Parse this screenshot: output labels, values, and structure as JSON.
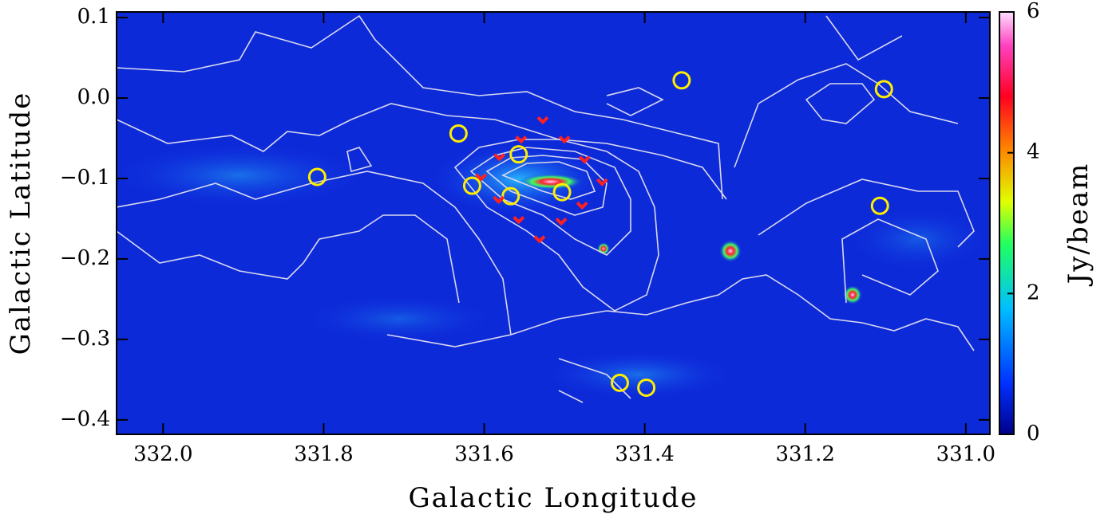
{
  "chart_data": {
    "type": "scatter",
    "xlabel": "Galactic Longitude",
    "ylabel": "Galactic Latitude",
    "xlim": [
      332.058,
      330.97
    ],
    "ylim": [
      -0.418,
      0.107
    ],
    "xticks": [
      {
        "value": 332,
        "label": "332.0"
      },
      331.8,
      331.6,
      331.4,
      331.2,
      {
        "value": 331,
        "label": "331.0"
      }
    ],
    "yticks": [
      0.1,
      {
        "value": 0,
        "label": "0.0"
      },
      {
        "value": -0.1,
        "label": "−0.1"
      },
      {
        "value": -0.2,
        "label": "−0.2"
      },
      {
        "value": -0.3,
        "label": "−0.3"
      },
      {
        "value": -0.4,
        "label": "−0.4"
      }
    ],
    "colorbar": {
      "label": "Jy/beam",
      "lim": [
        0,
        6
      ],
      "ticks": [
        0,
        2,
        4,
        6
      ]
    },
    "series": [
      {
        "color": "#ffee00",
        "marker": "circle",
        "x": [
          331.354,
          331.102,
          331.632,
          331.557,
          331.808,
          331.615,
          331.567,
          331.503,
          331.107,
          331.431,
          331.398
        ],
        "values": [
          0.022,
          0.011,
          -0.044,
          -0.07,
          -0.098,
          -0.109,
          -0.122,
          -0.117,
          -0.134,
          -0.354,
          -0.36
        ]
      },
      {
        "color": "#ff2020",
        "marker": "chevron",
        "x": [
          331.527,
          331.5,
          331.475,
          331.453,
          331.478,
          331.504,
          331.531,
          331.557,
          331.582,
          331.604,
          331.581,
          331.554
        ],
        "values": [
          -0.027,
          -0.051,
          -0.076,
          -0.104,
          -0.133,
          -0.153,
          -0.175,
          -0.151,
          -0.126,
          -0.098,
          -0.073,
          -0.051
        ]
      }
    ]
  }
}
